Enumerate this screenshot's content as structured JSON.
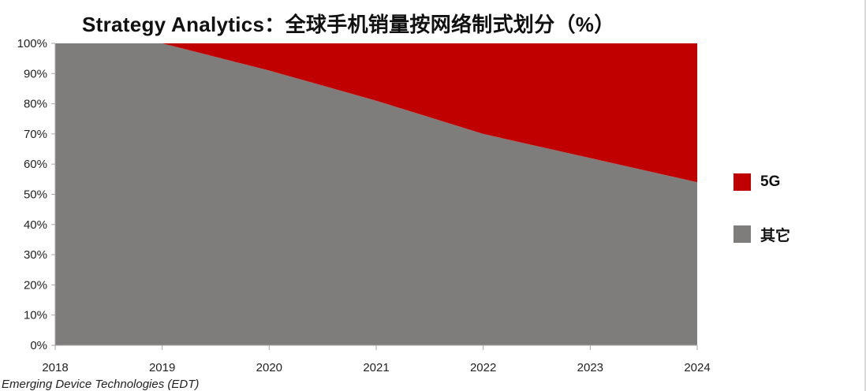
{
  "chart_data": {
    "type": "area",
    "stacked": true,
    "percent": true,
    "title": "Strategy Analytics：全球手机销量按网络制式划分（%）",
    "x": [
      "2018",
      "2019",
      "2020",
      "2021",
      "2022",
      "2023",
      "2024"
    ],
    "ylim": [
      0,
      100
    ],
    "yticks": [
      "0%",
      "10%",
      "20%",
      "30%",
      "40%",
      "50%",
      "60%",
      "70%",
      "80%",
      "90%",
      "100%"
    ],
    "series": [
      {
        "name": "其它",
        "color": "#7f7c7c",
        "values": [
          100,
          100,
          91,
          81,
          70,
          62,
          54
        ]
      },
      {
        "name": "5G",
        "color": "#c00000",
        "values": [
          0,
          0,
          9,
          19,
          30,
          38,
          46
        ]
      }
    ],
    "legend_position": "right",
    "source": "Emerging Device Technologies (EDT)"
  }
}
